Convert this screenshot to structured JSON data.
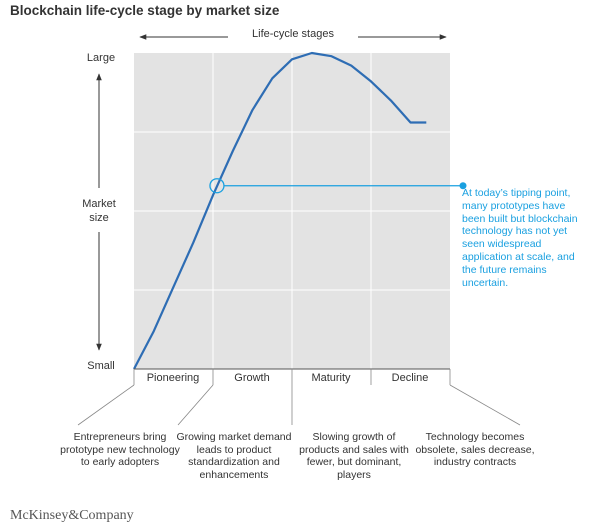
{
  "chart_data": {
    "type": "line",
    "title": "Blockchain life-cycle stage by market size",
    "header": "Life-cycle stages",
    "ylabel": "Market size",
    "y_ticks": [
      "Large",
      "Small"
    ],
    "categories": [
      "Pioneering",
      "Growth",
      "Maturity",
      "Decline"
    ],
    "stage_descriptions": [
      "Entrepreneurs bring prototype new technology to early adopters",
      "Growing market demand leads to product standardization and enhancements",
      "Slowing growth of products and sales with fewer, but dominant, players",
      "Technology becomes obsolete, sales decrease, industry contracts"
    ],
    "curve": {
      "x": [
        0,
        0.25,
        0.5,
        0.75,
        1.0,
        1.25,
        1.5,
        1.75,
        2.0,
        2.25,
        2.5,
        2.75,
        3.0,
        3.25,
        3.5,
        3.7
      ],
      "y": [
        0,
        0.12,
        0.26,
        0.4,
        0.55,
        0.69,
        0.82,
        0.92,
        0.98,
        1.0,
        0.99,
        0.96,
        0.91,
        0.85,
        0.78,
        0.78
      ],
      "color": "#2e6db4"
    },
    "annotation": {
      "x": 1.05,
      "y": 0.58,
      "text": "At today’s tipping point, many prototypes have been built but blockchain technology has not yet seen widespread application at scale, and the future remains uncertain.",
      "color": "#1aa0e0"
    },
    "grid": true,
    "background": "#e3e3e3"
  },
  "footer": "McKinsey&Company"
}
